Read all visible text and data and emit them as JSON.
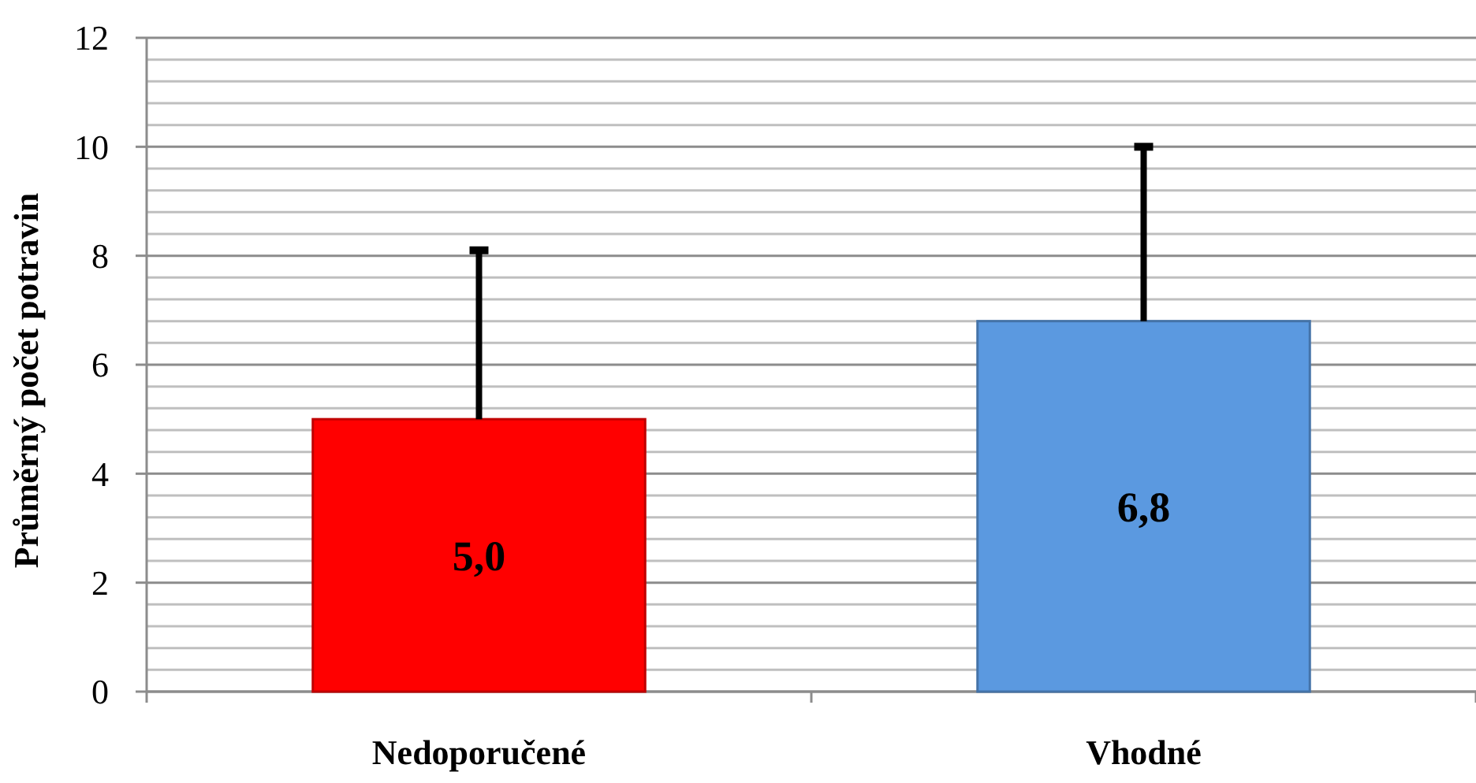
{
  "chart_data": {
    "type": "bar",
    "ylabel": "Průměrný počet potravin",
    "categories": [
      "Nedoporučené",
      "Vhodné"
    ],
    "values": [
      5.0,
      6.8
    ],
    "colors": [
      "#ff0000",
      "#5b99e0"
    ],
    "value_labels": [
      "5,0",
      "6,8"
    ],
    "errors": [
      [
        5.0,
        8.1
      ],
      [
        6.8,
        10.0
      ]
    ],
    "ylim": [
      0,
      12
    ],
    "yticks": [
      0,
      2,
      4,
      6,
      8,
      10,
      12
    ],
    "grid": "y"
  }
}
